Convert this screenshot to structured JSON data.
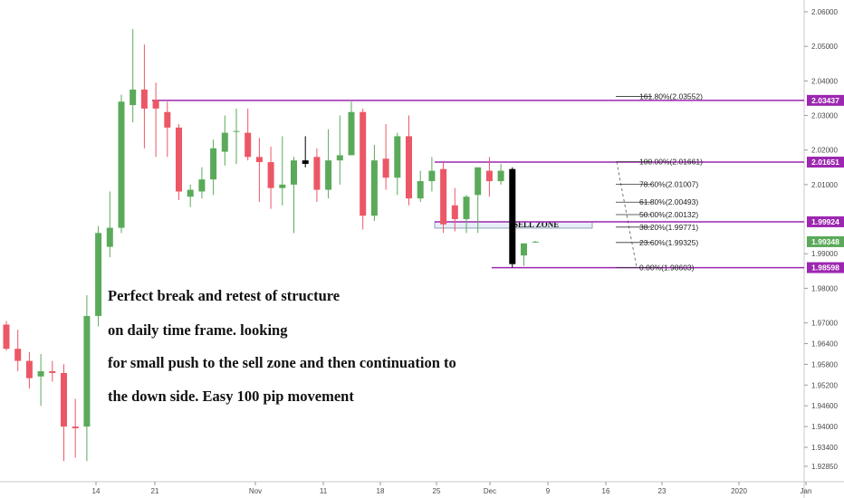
{
  "chart_data": {
    "type": "candlestick",
    "y_ticks": [
      "2.06000",
      "2.05000",
      "2.04000",
      "2.03000",
      "2.02000",
      "2.01000",
      "1.99000",
      "1.98000",
      "1.97000",
      "1.96400",
      "1.95800",
      "1.95200",
      "1.94600",
      "1.94000",
      "1.93400",
      "1.92850"
    ],
    "y_tick_values": [
      2.06,
      2.05,
      2.04,
      2.03,
      2.02,
      2.01,
      1.99,
      1.98,
      1.97,
      1.964,
      1.958,
      1.952,
      1.946,
      1.94,
      1.934,
      1.9285
    ],
    "x_ticks": [
      "14",
      "21",
      "Nov",
      "11",
      "18",
      "25",
      "Dec",
      "9",
      "16",
      "23",
      "2020",
      "Jan"
    ],
    "candle_colors": {
      "up": "#5aaa5a",
      "down": "#ec5766",
      "highlight": "#000000"
    },
    "candles": [
      {
        "o": 1.9695,
        "h": 1.9705,
        "l": 1.962,
        "c": 1.9625
      },
      {
        "o": 1.9625,
        "h": 1.968,
        "l": 1.956,
        "c": 1.959
      },
      {
        "o": 1.959,
        "h": 1.9615,
        "l": 1.951,
        "c": 1.954
      },
      {
        "o": 1.9545,
        "h": 1.961,
        "l": 1.946,
        "c": 1.956
      },
      {
        "o": 1.956,
        "h": 1.959,
        "l": 1.953,
        "c": 1.9555
      },
      {
        "o": 1.9555,
        "h": 1.958,
        "l": 1.93,
        "c": 1.94
      },
      {
        "o": 1.94,
        "h": 1.948,
        "l": 1.931,
        "c": 1.9395
      },
      {
        "o": 1.94,
        "h": 1.978,
        "l": 1.93,
        "c": 1.972
      },
      {
        "o": 1.972,
        "h": 1.998,
        "l": 1.969,
        "c": 1.996
      },
      {
        "o": 1.992,
        "h": 2.008,
        "l": 1.989,
        "c": 1.9975
      },
      {
        "o": 1.9975,
        "h": 2.036,
        "l": 1.996,
        "c": 2.034
      },
      {
        "o": 2.033,
        "h": 2.055,
        "l": 2.028,
        "c": 2.0375
      },
      {
        "o": 2.0375,
        "h": 2.0505,
        "l": 2.0205,
        "c": 2.032
      },
      {
        "o": 2.0345,
        "h": 2.0395,
        "l": 2.018,
        "c": 2.032
      },
      {
        "o": 2.031,
        "h": 2.034,
        "l": 2.018,
        "c": 2.0265
      },
      {
        "o": 2.0265,
        "h": 2.0275,
        "l": 2.0055,
        "c": 2.008
      },
      {
        "o": 2.0065,
        "h": 2.01,
        "l": 2.0035,
        "c": 2.0085
      },
      {
        "o": 2.008,
        "h": 2.015,
        "l": 2.006,
        "c": 2.0115
      },
      {
        "o": 2.0115,
        "h": 2.023,
        "l": 2.007,
        "c": 2.0205
      },
      {
        "o": 2.0195,
        "h": 2.03,
        "l": 2.0155,
        "c": 2.025
      },
      {
        "o": 2.0255,
        "h": 2.032,
        "l": 2.016,
        "c": 2.0255
      },
      {
        "o": 2.025,
        "h": 2.032,
        "l": 2.017,
        "c": 2.018
      },
      {
        "o": 2.018,
        "h": 2.0235,
        "l": 2.005,
        "c": 2.0165
      },
      {
        "o": 2.0165,
        "h": 2.021,
        "l": 2.003,
        "c": 2.009
      },
      {
        "o": 2.009,
        "h": 2.024,
        "l": 2.004,
        "c": 2.01
      },
      {
        "o": 2.01,
        "h": 2.018,
        "l": 1.996,
        "c": 2.017
      },
      {
        "o": 2.017,
        "h": 2.024,
        "l": 2.015,
        "c": 2.016
      },
      {
        "o": 2.018,
        "h": 2.0205,
        "l": 2.005,
        "c": 2.0085
      },
      {
        "o": 2.0085,
        "h": 2.026,
        "l": 2.006,
        "c": 2.017
      },
      {
        "o": 2.017,
        "h": 2.03,
        "l": 2.01,
        "c": 2.0185
      },
      {
        "o": 2.0185,
        "h": 2.034,
        "l": 2.0185,
        "c": 2.031
      },
      {
        "o": 2.031,
        "h": 2.032,
        "l": 1.997,
        "c": 2.001
      },
      {
        "o": 2.001,
        "h": 2.0215,
        "l": 1.9995,
        "c": 2.017
      },
      {
        "o": 2.0175,
        "h": 2.0275,
        "l": 2.0085,
        "c": 2.012
      },
      {
        "o": 2.012,
        "h": 2.025,
        "l": 2.007,
        "c": 2.024
      },
      {
        "o": 2.024,
        "h": 2.03,
        "l": 2.004,
        "c": 2.006
      },
      {
        "o": 2.006,
        "h": 2.014,
        "l": 2.005,
        "c": 2.011
      },
      {
        "o": 2.011,
        "h": 2.018,
        "l": 2.008,
        "c": 2.014
      },
      {
        "o": 2.0145,
        "h": 2.0165,
        "l": 1.996,
        "c": 1.9985
      },
      {
        "o": 2.004,
        "h": 2.009,
        "l": 1.9965,
        "c": 2.0
      },
      {
        "o": 2.0,
        "h": 2.007,
        "l": 1.996,
        "c": 2.0065
      },
      {
        "o": 2.007,
        "h": 2.0145,
        "l": 1.996,
        "c": 2.015
      },
      {
        "o": 2.014,
        "h": 2.018,
        "l": 2.0065,
        "c": 2.011
      },
      {
        "o": 2.011,
        "h": 2.016,
        "l": 2.01,
        "c": 2.014
      },
      {
        "o": 2.0145,
        "h": 2.015,
        "l": 1.986,
        "c": 1.987
      },
      {
        "o": 1.9895,
        "h": 1.993,
        "l": 1.9865,
        "c": 1.993
      },
      {
        "o": 1.9934,
        "h": 1.9937,
        "l": 1.9932,
        "c": 1.9935
      }
    ],
    "highlight_candles": [
      26,
      44
    ],
    "horizontal_levels": [
      {
        "value": 2.03437,
        "label": "2.03437"
      },
      {
        "value": 2.01651,
        "label": "2.01651"
      },
      {
        "value": 1.99924,
        "label": "1.99924"
      },
      {
        "value": 1.98598,
        "label": "1.98598"
      }
    ],
    "last_price": {
      "value": 1.99348,
      "label": "1.99348"
    },
    "fibonacci": [
      {
        "value": 2.03552,
        "label": "161.80%(2.03552)"
      },
      {
        "value": 2.01661,
        "label": "100.00%(2.01661)"
      },
      {
        "value": 2.01007,
        "label": "78.60%(2.01007)"
      },
      {
        "value": 2.00493,
        "label": "61.80%(2.00493)"
      },
      {
        "value": 2.00132,
        "label": "50.00%(2.00132)"
      },
      {
        "value": 1.99771,
        "label": "38.20%(1.99771)"
      },
      {
        "value": 1.99325,
        "label": "23.60%(1.99325)"
      },
      {
        "value": 1.98603,
        "label": "0.00%(1.98603)"
      }
    ],
    "sell_zone": {
      "label": "SELL ZONE",
      "top": 1.99924,
      "bottom": 1.99771
    },
    "annotation_lines": [
      "Perfect break and retest of structure",
      "on daily time frame. looking",
      "for small push to the sell zone and then continuation to",
      "the down side. Easy 100 pip movement"
    ],
    "colors": {
      "level_line": "#9c27b0",
      "last_price_bg": "#5aaa5a",
      "zone_fill": "#e8eef8",
      "zone_border": "#7a8aa8"
    }
  }
}
